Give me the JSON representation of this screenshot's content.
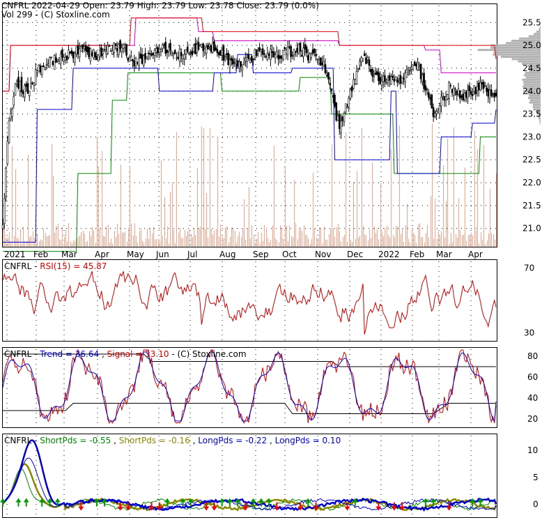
{
  "header": {
    "line1": "CNFRL  2022-04-29 Open: 23.79  High: 23.79  Low: 23.78  Close: 23.79 (0.0%)",
    "line2": "Vol 299   - (C) Stoxline.com"
  },
  "rsi_panel": {
    "label_name": "CNFRL",
    "label_rsi": "RSI(15) = 45.87",
    "y_ticks": [
      "70",
      "30"
    ]
  },
  "trend_panel": {
    "label_name": "CNFRL",
    "label_trend": "Trend = 36.64",
    "label_signal": "Signal = 33.10",
    "label_credit": "- (C) Stoxline.com",
    "y_ticks": [
      "80",
      "60",
      "40",
      "20"
    ]
  },
  "pds_panel": {
    "label_name": "CNFRL",
    "label_s1": "ShortPds = -0.55",
    "label_s2": "ShortPds = -0.16",
    "label_l1": "LongPds = -0.22",
    "label_l2": "LongPds = 0.10",
    "y_ticks": [
      "10",
      "5",
      "0"
    ]
  },
  "colors": {
    "rsi_line": "#cc0000",
    "trend_line": "#0000cc",
    "signal_line": "#cc0000",
    "short_pds_1": "#008800",
    "short_pds_2": "#888800",
    "long_pds_1": "#0000cc",
    "long_pds_2": "#0000cc",
    "volume_bar": "#f4a38a",
    "upper_band": "#dd0000",
    "mid_band": "#cc00cc",
    "support_blue": "#0000cc",
    "support_green": "#008800",
    "up_arrow": "#009900",
    "down_arrow": "#ee0000"
  },
  "chart_data": [
    {
      "type": "candlestick",
      "x_tick_labels": [
        "2021",
        "Feb",
        "Mar",
        "Apr",
        "May",
        "Jun",
        "Jul",
        "Aug",
        "Sep",
        "Oct",
        "Nov",
        "Dec",
        "2022",
        "Feb",
        "Mar",
        "Apr"
      ],
      "y_tick_labels": [
        "25.5",
        "25.0",
        "24.5",
        "24.0",
        "23.5",
        "23.0",
        "22.5",
        "22.0",
        "21.5",
        "21.0"
      ],
      "ylim": [
        20.6,
        25.9
      ],
      "last_bar": {
        "date": "2022-04-29",
        "open": 23.79,
        "high": 23.79,
        "low": 23.78,
        "close": 23.79,
        "volume": 299
      },
      "price_path": [
        [
          0,
          21.0
        ],
        [
          3,
          23.0
        ],
        [
          8,
          24.2
        ],
        [
          15,
          24.0
        ],
        [
          25,
          24.6
        ],
        [
          35,
          24.7
        ],
        [
          50,
          24.9
        ],
        [
          60,
          24.8
        ],
        [
          75,
          25.0
        ],
        [
          85,
          24.6
        ],
        [
          100,
          24.9
        ],
        [
          115,
          24.8
        ],
        [
          130,
          25.0
        ],
        [
          140,
          24.8
        ],
        [
          150,
          24.5
        ],
        [
          165,
          24.9
        ],
        [
          175,
          24.8
        ],
        [
          190,
          24.9
        ],
        [
          205,
          24.6
        ],
        [
          215,
          23.2
        ],
        [
          230,
          24.8
        ],
        [
          240,
          24.2
        ],
        [
          255,
          24.3
        ],
        [
          265,
          24.6
        ],
        [
          275,
          23.5
        ],
        [
          285,
          24.1
        ],
        [
          295,
          23.9
        ],
        [
          305,
          24.1
        ],
        [
          315,
          23.8
        ]
      ],
      "upper_band": [
        [
          0,
          24.0
        ],
        [
          5,
          25.0
        ],
        [
          80,
          25.0
        ],
        [
          82,
          25.6
        ],
        [
          125,
          25.6
        ],
        [
          128,
          25.3
        ],
        [
          210,
          25.3
        ],
        [
          215,
          25.0
        ],
        [
          315,
          24.7
        ]
      ],
      "mid_band": [
        [
          0,
          24.0
        ],
        [
          5,
          25.0
        ],
        [
          80,
          25.0
        ],
        [
          85,
          25.6
        ],
        [
          125,
          25.3
        ],
        [
          135,
          25.1
        ],
        [
          215,
          25.0
        ],
        [
          270,
          24.9
        ],
        [
          280,
          24.4
        ],
        [
          315,
          24.4
        ]
      ],
      "blue_support": [
        [
          0,
          20.7
        ],
        [
          12,
          20.7
        ],
        [
          22,
          23.6
        ],
        [
          35,
          23.6
        ],
        [
          45,
          24.5
        ],
        [
          95,
          24.5
        ],
        [
          100,
          24.0
        ],
        [
          120,
          24.0
        ],
        [
          135,
          24.4
        ],
        [
          150,
          24.8
        ],
        [
          160,
          24.4
        ],
        [
          185,
          24.5
        ],
        [
          205,
          24.5
        ],
        [
          212,
          22.5
        ],
        [
          230,
          22.5
        ],
        [
          248,
          24.0
        ],
        [
          252,
          22.2
        ],
        [
          275,
          22.2
        ],
        [
          280,
          23.0
        ],
        [
          300,
          23.3
        ],
        [
          315,
          23.6
        ]
      ],
      "green_support": [
        [
          0,
          20.5
        ],
        [
          35,
          20.5
        ],
        [
          48,
          22.2
        ],
        [
          60,
          22.2
        ],
        [
          70,
          23.8
        ],
        [
          80,
          24.4
        ],
        [
          135,
          24.4
        ],
        [
          140,
          24.0
        ],
        [
          190,
          24.3
        ],
        [
          205,
          24.3
        ],
        [
          210,
          23.5
        ],
        [
          250,
          22.2
        ],
        [
          295,
          22.2
        ],
        [
          305,
          23.0
        ],
        [
          315,
          23.0
        ]
      ],
      "volume_profile_center": 24.9
    },
    {
      "type": "line",
      "title": "RSI(15) = 45.87",
      "y_tick_labels": [
        "70",
        "30"
      ],
      "ylim": [
        25,
        75
      ],
      "series": [
        {
          "name": "RSI(15)",
          "last": 45.87
        }
      ]
    },
    {
      "type": "line",
      "y_tick_labels": [
        "80",
        "60",
        "40",
        "20"
      ],
      "ylim": [
        12,
        88
      ],
      "series": [
        {
          "name": "Trend",
          "last": 36.64
        },
        {
          "name": "Signal",
          "last": 33.1
        }
      ]
    },
    {
      "type": "line",
      "y_tick_labels": [
        "10",
        "5",
        "0"
      ],
      "ylim": [
        -2.5,
        13
      ],
      "series": [
        {
          "name": "ShortPds",
          "last": -0.55
        },
        {
          "name": "ShortPds",
          "last": -0.16
        },
        {
          "name": "LongPds",
          "last": -0.22
        },
        {
          "name": "LongPds",
          "last": 0.1
        }
      ]
    }
  ]
}
